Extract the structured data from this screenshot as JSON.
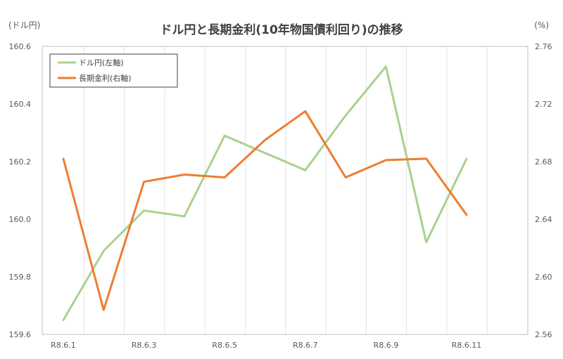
{
  "chart_data": {
    "type": "line",
    "title": "ドル円と長期金利(10年物国債利回り)の推移",
    "y_left_unit": "(ドル円)",
    "y_right_unit": "(%)",
    "x_ticks": [
      "R8.6.1",
      "R8.6.3",
      "R8.6.5",
      "R8.6.7",
      "R8.6.9",
      "R8.6.11"
    ],
    "ylim_left": [
      159.6,
      160.6
    ],
    "ylim_right": [
      2.56,
      2.76
    ],
    "yticks_left": [
      "159.6",
      "159.8",
      "160.0",
      "160.2",
      "160.4",
      "160.6"
    ],
    "yticks_right": [
      "2.56",
      "2.60",
      "2.64",
      "2.68",
      "2.72",
      "2.76"
    ],
    "grid": "vertical",
    "legend_position": "top-left",
    "series": [
      {
        "name": "ドル円(左軸)",
        "axis": "left",
        "color": "#a9d18e",
        "values": [
          159.65,
          159.89,
          160.03,
          160.01,
          160.29,
          160.23,
          160.17,
          160.36,
          160.53,
          159.92,
          160.21
        ]
      },
      {
        "name": "長期金利(右軸)",
        "axis": "right",
        "color": "#ed7d31",
        "values": [
          2.682,
          2.577,
          2.666,
          2.671,
          2.669,
          2.695,
          2.715,
          2.669,
          2.681,
          2.682,
          2.643
        ]
      }
    ]
  }
}
